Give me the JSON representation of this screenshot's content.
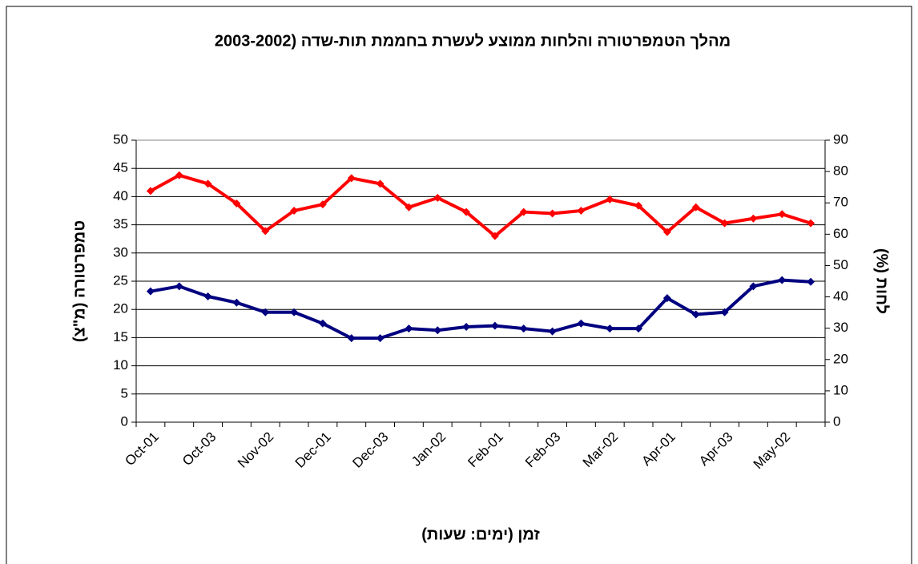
{
  "chart_data": {
    "type": "line",
    "title": "מהלך הטמפרטורה והלחות  ממוצע לעשרת בחממת תות-שדה (2003-2002",
    "x_label": "זמן (ימים: שעות)",
    "y_label": "טמפרטורה (מ\"צ)",
    "y2_label": "לחות (%)",
    "categories": [
      "Oct-01",
      null,
      "Oct-03",
      null,
      "Nov-02",
      null,
      "Dec-01",
      null,
      "Dec-03",
      null,
      "Jan-02",
      null,
      "Feb-01",
      null,
      "Feb-03",
      null,
      "Mar-02",
      null,
      "Apr-01",
      null,
      "Apr-03",
      null,
      "May-02",
      null
    ],
    "series": [
      {
        "name": "טמפרטורה",
        "color": "#000080",
        "axis": "y",
        "values": [
          23.2,
          24.1,
          22.3,
          21.2,
          19.5,
          19.5,
          17.5,
          14.9,
          14.9,
          16.6,
          16.3,
          16.9,
          17.1,
          16.6,
          16.1,
          17.5,
          16.6,
          16.6,
          22.0,
          19.1,
          19.5,
          24.1,
          25.2,
          24.9
        ]
      },
      {
        "name": "לחות",
        "color": "#ff0000",
        "axis": "y2",
        "values": [
          73.8,
          78.8,
          76.1,
          69.8,
          61,
          67.5,
          69.5,
          77.9,
          76.1,
          68.6,
          71.6,
          67.1,
          59.4,
          67.1,
          66.6,
          67.5,
          71.1,
          69.1,
          60.7,
          68.6,
          63.5,
          65,
          66.4,
          63.5
        ]
      }
    ],
    "ylim": [
      0,
      50
    ],
    "yticks": [
      0,
      5,
      10,
      15,
      20,
      25,
      30,
      35,
      40,
      45,
      50
    ],
    "y2lim": [
      0,
      90
    ],
    "y2ticks": [
      0,
      10,
      20,
      30,
      40,
      50,
      60,
      70,
      80,
      90
    ],
    "grid": true
  }
}
